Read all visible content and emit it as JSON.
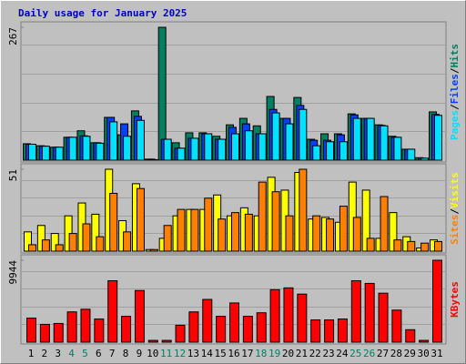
{
  "chart_data": {
    "type": "bar",
    "title": "Daily usage for January 2025",
    "categories": [
      "1",
      "2",
      "3",
      "4",
      "5",
      "6",
      "7",
      "8",
      "9",
      "10",
      "11",
      "12",
      "13",
      "14",
      "15",
      "16",
      "17",
      "18",
      "19",
      "20",
      "21",
      "22",
      "23",
      "24",
      "25",
      "26",
      "27",
      "28",
      "29",
      "30",
      "31"
    ],
    "legend_separator": "/",
    "panels": [
      {
        "ylim": [
          0,
          267
        ],
        "yticks": [
          267
        ],
        "series": [
          {
            "name": "Hits",
            "color": "#008060",
            "values": [
              33,
              29,
              26,
              46,
              59,
              35,
              86,
              51,
              99,
              2,
              267,
              35,
              55,
              55,
              48,
              71,
              84,
              69,
              128,
              84,
              126,
              42,
              53,
              53,
              93,
              84,
              71,
              48,
              22,
              5,
              97
            ]
          },
          {
            "name": "Files",
            "color": "#0040ff",
            "values": [
              32,
              28,
              26,
              46,
              49,
              35,
              86,
              73,
              88,
              2,
              42,
              24,
              44,
              53,
              42,
              66,
              73,
              53,
              102,
              84,
              110,
              40,
              40,
              51,
              91,
              84,
              70,
              46,
              22,
              4,
              92
            ]
          },
          {
            "name": "Pages",
            "color": "#00e0ff",
            "values": [
              32,
              28,
              26,
              46,
              48,
              34,
              77,
              48,
              80,
              1,
              42,
              24,
              44,
              53,
              42,
              53,
              59,
              53,
              95,
              73,
              102,
              29,
              37,
              37,
              84,
              84,
              69,
              46,
              22,
              4,
              90
            ]
          }
        ]
      },
      {
        "ylim": [
          0,
          51
        ],
        "yticks": [
          51
        ],
        "series": [
          {
            "name": "Visits",
            "color": "#ffff00",
            "values": [
              12,
              16,
              11,
              22,
              30,
              23,
              51,
              19,
              42,
              1,
              8,
              22,
              26,
              26,
              35,
              22,
              27,
              22,
              46,
              38,
              49,
              20,
              21,
              18,
              43,
              38,
              8,
              24,
              9,
              2,
              7
            ]
          },
          {
            "name": "Sites",
            "color": "#ff8000",
            "values": [
              4,
              7,
              4,
              11,
              17,
              9,
              36,
              12,
              39,
              1,
              16,
              26,
              26,
              33,
              20,
              24,
              23,
              43,
              37,
              22,
              51,
              22,
              20,
              28,
              21,
              8,
              34,
              7,
              6,
              5,
              6
            ]
          }
        ]
      },
      {
        "ylim": [
          0,
          9944
        ],
        "yticks": [
          9944
        ],
        "series": [
          {
            "name": "KBytes",
            "color": "#ff0000",
            "values": [
              2918,
              2162,
              2270,
              3675,
              3999,
              2810,
              7458,
              3135,
              6269,
              216,
              216,
              2054,
              3675,
              5188,
              3135,
              4756,
              3135,
              3567,
              6377,
              6593,
              5837,
              2702,
              2702,
              2810,
              7458,
              7134,
              5945,
              3891,
              1513,
              216,
              9944
            ]
          }
        ]
      }
    ]
  }
}
